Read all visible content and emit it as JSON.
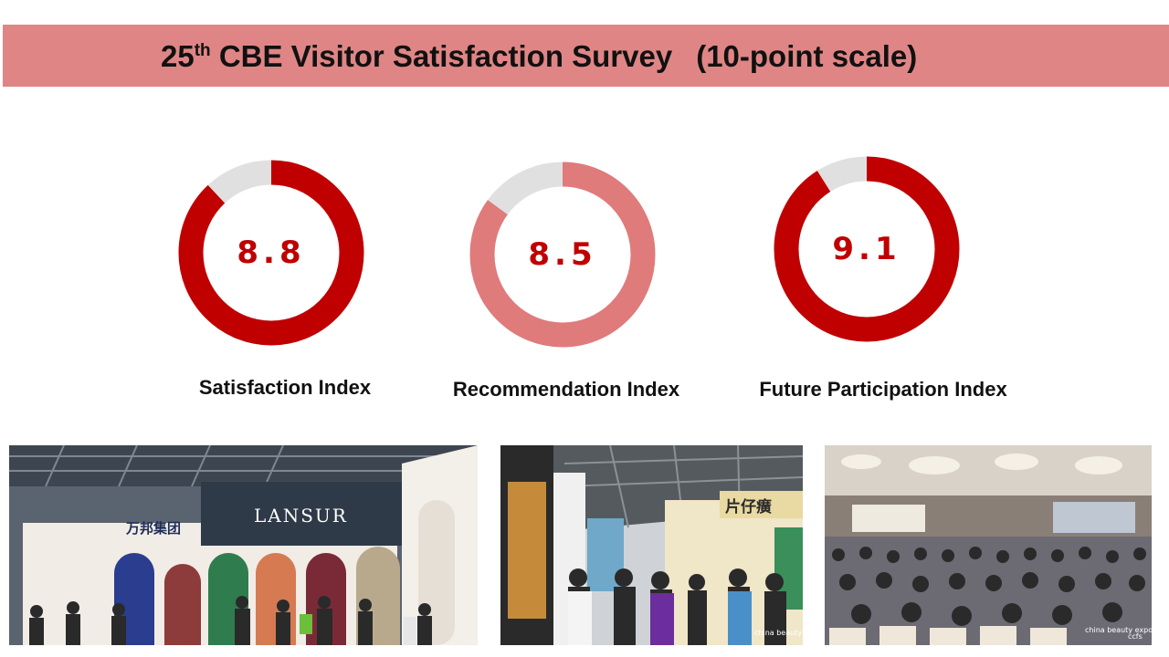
{
  "header": {
    "title_number": "25",
    "title_suffix": "th",
    "title_main": " CBE Visitor Satisfaction Survey",
    "title_scale": "(10-point scale)"
  },
  "chart_data": [
    {
      "type": "pie",
      "label": "Satisfaction Index",
      "value": 8.8,
      "value_text": "8.8",
      "max": 10,
      "color": "#c00000",
      "track_color": "#e0e0e0"
    },
    {
      "type": "pie",
      "label": "Recommendation Index",
      "value": 8.5,
      "value_text": "8.5",
      "max": 10,
      "color": "#e07b7b",
      "track_color": "#e0e0e0"
    },
    {
      "type": "pie",
      "label": "Future Participation Index",
      "value": 9.1,
      "value_text": "9.1",
      "max": 10,
      "color": "#c00000",
      "track_color": "#e0e0e0"
    }
  ],
  "photos": {
    "left_banner_1": "万邦集团",
    "left_banner_2": "LANSUR",
    "middle_sign": "片仔癀",
    "logo_1": "china beauty expo",
    "logo_2": "ccfs"
  },
  "colors": {
    "title_bar": "#e08585",
    "accent_dark": "#c00000",
    "accent_light": "#e07b7b"
  }
}
